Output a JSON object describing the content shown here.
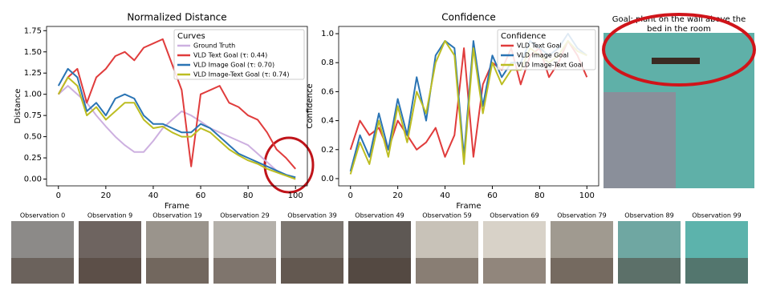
{
  "chart_data": [
    {
      "type": "line",
      "title": "Normalized Distance",
      "xlabel": "Frame",
      "ylabel": "Distance",
      "legend_title": "Curves",
      "legend": "upper right",
      "x": [
        0,
        4,
        8,
        12,
        16,
        20,
        24,
        28,
        32,
        36,
        40,
        44,
        48,
        52,
        56,
        60,
        64,
        68,
        72,
        76,
        80,
        84,
        88,
        92,
        96,
        100
      ],
      "xlim": [
        -5,
        105
      ],
      "xticks": [
        0,
        20,
        40,
        60,
        80,
        100
      ],
      "ylim": [
        -0.08,
        1.8
      ],
      "yticks": [
        {
          "value": 0,
          "label": "0.00"
        },
        {
          "value": 0.25,
          "label": "0.25"
        },
        {
          "value": 0.5,
          "label": "0.50"
        },
        {
          "value": 0.75,
          "label": "0.75"
        },
        {
          "value": 1,
          "label": "1.00"
        },
        {
          "value": 1.25,
          "label": "1.25"
        },
        {
          "value": 1.5,
          "label": "1.50"
        },
        {
          "value": 1.75,
          "label": "1.75"
        }
      ],
      "series": [
        {
          "name": "Ground Truth",
          "color": "#cdb0e0",
          "values": [
            1.0,
            1.1,
            1.0,
            0.9,
            0.75,
            0.62,
            0.5,
            0.4,
            0.32,
            0.32,
            0.45,
            0.6,
            0.7,
            0.8,
            0.75,
            0.68,
            0.6,
            0.55,
            0.5,
            0.45,
            0.4,
            0.3,
            0.2,
            0.1,
            0.05,
            0.0
          ]
        },
        {
          "name": "VLD Text Goal (τ: 0.44)",
          "color": "#e03c3c",
          "values": [
            1.0,
            1.2,
            1.3,
            0.9,
            1.2,
            1.3,
            1.45,
            1.5,
            1.4,
            1.55,
            1.6,
            1.65,
            1.35,
            1.05,
            0.15,
            1.0,
            1.05,
            1.1,
            0.9,
            0.85,
            0.75,
            0.7,
            0.55,
            0.35,
            0.25,
            0.12
          ]
        },
        {
          "name": "VLD Image Goal (τ: 0.70)",
          "color": "#2a74b4",
          "values": [
            1.1,
            1.3,
            1.2,
            0.8,
            0.9,
            0.75,
            0.95,
            1.0,
            0.95,
            0.75,
            0.65,
            0.65,
            0.6,
            0.55,
            0.55,
            0.65,
            0.6,
            0.5,
            0.4,
            0.3,
            0.25,
            0.2,
            0.15,
            0.1,
            0.05,
            0.02
          ]
        },
        {
          "name": "VLD Image-Text Goal (τ: 0.74)",
          "color": "#bcbd22",
          "values": [
            1.0,
            1.2,
            1.1,
            0.75,
            0.85,
            0.7,
            0.8,
            0.9,
            0.9,
            0.7,
            0.6,
            0.62,
            0.55,
            0.5,
            0.5,
            0.6,
            0.55,
            0.45,
            0.35,
            0.28,
            0.22,
            0.18,
            0.12,
            0.08,
            0.04,
            0.0
          ]
        }
      ]
    },
    {
      "type": "line",
      "title": "Confidence",
      "xlabel": "Frame",
      "ylabel": "Confidence",
      "legend_title": "Confidence",
      "legend": "upper right",
      "x": [
        0,
        4,
        8,
        12,
        16,
        20,
        24,
        28,
        32,
        36,
        40,
        44,
        48,
        52,
        56,
        60,
        64,
        68,
        72,
        76,
        80,
        84,
        88,
        92,
        96,
        100
      ],
      "xlim": [
        -5,
        105
      ],
      "xticks": [
        0,
        20,
        40,
        60,
        80,
        100
      ],
      "ylim": [
        -0.05,
        1.05
      ],
      "yticks": [
        {
          "value": 0,
          "label": "0.0"
        },
        0.2,
        0.4,
        0.6,
        0.8,
        {
          "value": 1,
          "label": "1.0"
        }
      ],
      "series": [
        {
          "name": "VLD Text Goal",
          "color": "#e03c3c",
          "values": [
            0.2,
            0.4,
            0.3,
            0.35,
            0.2,
            0.4,
            0.3,
            0.2,
            0.25,
            0.35,
            0.15,
            0.3,
            0.9,
            0.15,
            0.65,
            0.8,
            0.75,
            0.9,
            0.65,
            0.85,
            0.9,
            0.7,
            0.8,
            0.95,
            0.85,
            0.7
          ]
        },
        {
          "name": "VLD Image Goal",
          "color": "#2a74b4",
          "values": [
            0.05,
            0.3,
            0.15,
            0.45,
            0.2,
            0.55,
            0.3,
            0.7,
            0.4,
            0.85,
            0.95,
            0.9,
            0.15,
            0.95,
            0.5,
            0.85,
            0.7,
            0.8,
            0.8,
            0.95,
            0.9,
            0.85,
            0.9,
            1.0,
            0.9,
            0.85
          ]
        },
        {
          "name": "VLD Image-Text Goal",
          "color": "#bcbd22",
          "values": [
            0.03,
            0.25,
            0.1,
            0.4,
            0.15,
            0.5,
            0.25,
            0.6,
            0.45,
            0.8,
            0.95,
            0.85,
            0.1,
            0.9,
            0.45,
            0.8,
            0.65,
            0.75,
            0.75,
            0.9,
            0.85,
            0.8,
            0.85,
            0.95,
            0.88,
            0.85
          ]
        }
      ]
    }
  ],
  "goal": {
    "text": "Goal: plant on the wall above the bed in the room"
  },
  "observations": [
    "Observation 0",
    "Observation 9",
    "Observation 19",
    "Observation 29",
    "Observation 39",
    "Observation 49",
    "Observation 59",
    "Observation 69",
    "Observation 79",
    "Observation 89",
    "Observation 99"
  ]
}
